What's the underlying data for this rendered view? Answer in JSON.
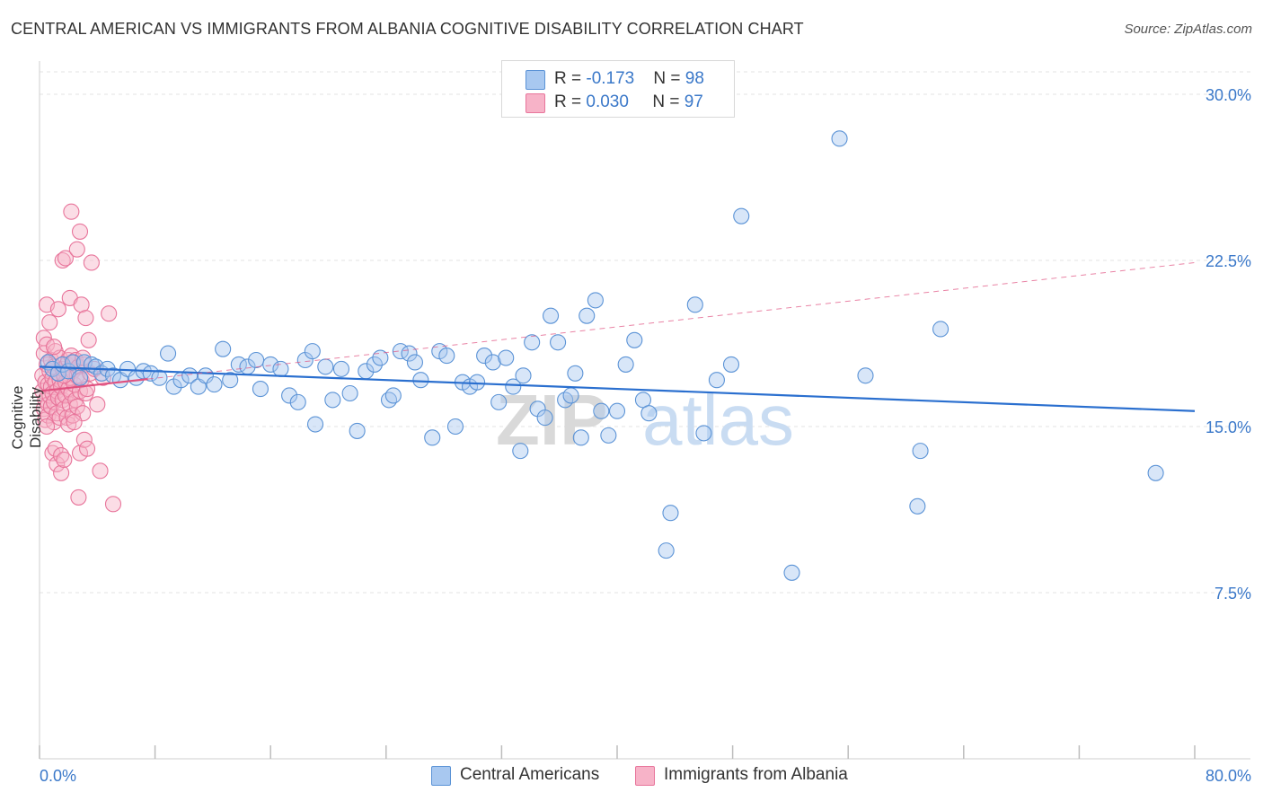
{
  "header": {
    "title": "CENTRAL AMERICAN VS IMMIGRANTS FROM ALBANIA COGNITIVE DISABILITY CORRELATION CHART",
    "source": "Source: ZipAtlas.com"
  },
  "watermark": {
    "part1": "ZIP",
    "part2": "atlas"
  },
  "legend_top": [
    {
      "r_label": "R = ",
      "r_value": "-0.173",
      "n_label": "N = ",
      "n_value": "98"
    },
    {
      "r_label": "R = ",
      "r_value": "0.030",
      "n_label": "N = ",
      "n_value": "97"
    }
  ],
  "legend_bottom": [
    {
      "label": "Central Americans"
    },
    {
      "label": "Immigrants from Albania"
    }
  ],
  "colors": {
    "blue_fill": "#a8c8f0",
    "blue_stroke": "#5b93d6",
    "blue_line": "#2a6fcf",
    "pink_fill": "#f7b3c8",
    "pink_stroke": "#e8759b",
    "pink_line": "#e0507f",
    "tick_label": "#3a78c9",
    "grid": "#e3e3e3"
  },
  "chart_data": {
    "type": "scatter",
    "title": "CENTRAL AMERICAN VS IMMIGRANTS FROM ALBANIA COGNITIVE DISABILITY CORRELATION CHART",
    "xlabel": "",
    "ylabel": "Cognitive Disability",
    "xlim": [
      0,
      80
    ],
    "ylim": [
      0,
      31.5
    ],
    "x_tick_labels": [
      "0.0%",
      "80.0%"
    ],
    "y_ticks": [
      7.5,
      15.0,
      22.5,
      30.0
    ],
    "y_tick_labels": [
      "7.5%",
      "15.0%",
      "22.5%",
      "30.0%"
    ],
    "grid": true,
    "legend_placement": "top-center and bottom",
    "series": [
      {
        "name": "Central Americans",
        "r": -0.173,
        "n": 98,
        "trend": {
          "x": [
            0,
            80
          ],
          "y": [
            17.7,
            15.7
          ]
        },
        "points": [
          [
            0.6,
            17.9
          ],
          [
            0.9,
            17.6
          ],
          [
            1.3,
            17.4
          ],
          [
            1.6,
            17.8
          ],
          [
            2.0,
            17.5
          ],
          [
            2.3,
            17.9
          ],
          [
            2.8,
            17.2
          ],
          [
            3.1,
            17.9
          ],
          [
            3.6,
            17.8
          ],
          [
            3.9,
            17.7
          ],
          [
            4.3,
            17.4
          ],
          [
            4.7,
            17.6
          ],
          [
            5.1,
            17.3
          ],
          [
            5.6,
            17.1
          ],
          [
            6.1,
            17.6
          ],
          [
            6.7,
            17.2
          ],
          [
            7.2,
            17.5
          ],
          [
            7.7,
            17.4
          ],
          [
            8.3,
            17.2
          ],
          [
            8.9,
            18.3
          ],
          [
            9.3,
            16.8
          ],
          [
            9.8,
            17.1
          ],
          [
            10.4,
            17.3
          ],
          [
            11.0,
            16.8
          ],
          [
            11.5,
            17.3
          ],
          [
            12.1,
            16.9
          ],
          [
            12.7,
            18.5
          ],
          [
            13.2,
            17.1
          ],
          [
            13.8,
            17.8
          ],
          [
            14.4,
            17.7
          ],
          [
            15.0,
            18.0
          ],
          [
            15.3,
            16.7
          ],
          [
            16.0,
            17.8
          ],
          [
            16.7,
            17.6
          ],
          [
            17.3,
            16.4
          ],
          [
            17.9,
            16.1
          ],
          [
            18.4,
            18.0
          ],
          [
            18.9,
            18.4
          ],
          [
            19.1,
            15.1
          ],
          [
            19.8,
            17.7
          ],
          [
            20.3,
            16.2
          ],
          [
            20.9,
            17.6
          ],
          [
            21.5,
            16.5
          ],
          [
            22.0,
            14.8
          ],
          [
            22.6,
            17.5
          ],
          [
            23.2,
            17.8
          ],
          [
            23.6,
            18.1
          ],
          [
            24.2,
            16.2
          ],
          [
            24.5,
            16.4
          ],
          [
            25.0,
            18.4
          ],
          [
            25.6,
            18.3
          ],
          [
            26.0,
            17.9
          ],
          [
            26.4,
            17.1
          ],
          [
            27.2,
            14.5
          ],
          [
            27.7,
            18.4
          ],
          [
            28.2,
            18.2
          ],
          [
            28.8,
            15.0
          ],
          [
            29.3,
            17.0
          ],
          [
            29.8,
            16.8
          ],
          [
            30.3,
            17.0
          ],
          [
            30.8,
            18.2
          ],
          [
            31.4,
            17.9
          ],
          [
            31.8,
            16.1
          ],
          [
            32.3,
            18.1
          ],
          [
            32.8,
            16.8
          ],
          [
            33.3,
            13.9
          ],
          [
            33.5,
            17.3
          ],
          [
            34.1,
            18.8
          ],
          [
            34.5,
            15.8
          ],
          [
            35.0,
            15.4
          ],
          [
            35.4,
            20.0
          ],
          [
            35.9,
            18.8
          ],
          [
            36.4,
            16.2
          ],
          [
            36.8,
            16.4
          ],
          [
            37.1,
            17.4
          ],
          [
            37.5,
            14.5
          ],
          [
            37.9,
            20.0
          ],
          [
            38.5,
            20.7
          ],
          [
            38.9,
            15.7
          ],
          [
            39.4,
            14.6
          ],
          [
            40.0,
            15.7
          ],
          [
            40.6,
            17.8
          ],
          [
            41.2,
            18.9
          ],
          [
            41.8,
            16.2
          ],
          [
            42.2,
            15.6
          ],
          [
            43.7,
            11.1
          ],
          [
            43.4,
            9.4
          ],
          [
            45.4,
            20.5
          ],
          [
            46.0,
            14.7
          ],
          [
            46.9,
            17.1
          ],
          [
            47.9,
            17.8
          ],
          [
            48.6,
            24.5
          ],
          [
            52.1,
            8.4
          ],
          [
            55.4,
            28.0
          ],
          [
            57.2,
            17.3
          ],
          [
            60.8,
            11.4
          ],
          [
            61.0,
            13.9
          ],
          [
            62.4,
            19.4
          ],
          [
            77.3,
            12.9
          ]
        ]
      },
      {
        "name": "Immigrants from Albania",
        "r": 0.03,
        "n": 97,
        "trend": {
          "x": [
            0,
            80
          ],
          "y": [
            16.6,
            22.4
          ]
        },
        "points": [
          [
            0.2,
            17.3
          ],
          [
            0.2,
            16.6
          ],
          [
            0.3,
            15.8
          ],
          [
            0.3,
            18.3
          ],
          [
            0.3,
            19.0
          ],
          [
            0.4,
            17.0
          ],
          [
            0.4,
            16.2
          ],
          [
            0.4,
            15.3
          ],
          [
            0.5,
            18.7
          ],
          [
            0.5,
            20.5
          ],
          [
            0.5,
            17.8
          ],
          [
            0.6,
            16.9
          ],
          [
            0.6,
            16.0
          ],
          [
            0.6,
            15.5
          ],
          [
            0.7,
            19.7
          ],
          [
            0.7,
            17.5
          ],
          [
            0.7,
            16.4
          ],
          [
            0.8,
            18.0
          ],
          [
            0.8,
            16.8
          ],
          [
            0.8,
            15.9
          ],
          [
            0.9,
            17.2
          ],
          [
            0.9,
            16.5
          ],
          [
            0.9,
            13.8
          ],
          [
            1.0,
            17.7
          ],
          [
            1.0,
            16.1
          ],
          [
            1.0,
            15.2
          ],
          [
            1.1,
            18.4
          ],
          [
            1.1,
            17.0
          ],
          [
            1.1,
            14.0
          ],
          [
            1.2,
            16.6
          ],
          [
            1.2,
            15.6
          ],
          [
            1.2,
            13.3
          ],
          [
            1.3,
            20.3
          ],
          [
            1.3,
            17.4
          ],
          [
            1.3,
            16.3
          ],
          [
            1.4,
            18.1
          ],
          [
            1.4,
            17.1
          ],
          [
            1.4,
            15.4
          ],
          [
            1.5,
            16.8
          ],
          [
            1.5,
            13.7
          ],
          [
            1.5,
            12.9
          ],
          [
            1.6,
            22.5
          ],
          [
            1.6,
            17.6
          ],
          [
            1.6,
            16.2
          ],
          [
            1.7,
            15.8
          ],
          [
            1.7,
            13.5
          ],
          [
            1.8,
            22.6
          ],
          [
            1.8,
            17.0
          ],
          [
            1.8,
            16.4
          ],
          [
            1.9,
            17.8
          ],
          [
            1.9,
            15.4
          ],
          [
            2.0,
            18.0
          ],
          [
            2.0,
            16.7
          ],
          [
            2.0,
            15.1
          ],
          [
            2.1,
            20.8
          ],
          [
            2.1,
            17.2
          ],
          [
            2.1,
            16.0
          ],
          [
            2.2,
            24.7
          ],
          [
            2.2,
            18.2
          ],
          [
            2.2,
            16.5
          ],
          [
            2.3,
            17.5
          ],
          [
            2.3,
            15.5
          ],
          [
            2.4,
            17.9
          ],
          [
            2.4,
            16.9
          ],
          [
            2.5,
            18.0
          ],
          [
            2.5,
            16.2
          ],
          [
            2.6,
            23.0
          ],
          [
            2.6,
            17.3
          ],
          [
            2.6,
            15.9
          ],
          [
            2.7,
            11.8
          ],
          [
            2.7,
            17.7
          ],
          [
            2.8,
            23.8
          ],
          [
            2.8,
            16.6
          ],
          [
            2.8,
            13.8
          ],
          [
            2.9,
            20.5
          ],
          [
            2.9,
            17.1
          ],
          [
            3.0,
            15.6
          ],
          [
            3.1,
            17.8
          ],
          [
            3.1,
            14.4
          ],
          [
            3.2,
            19.9
          ],
          [
            3.2,
            16.5
          ],
          [
            3.3,
            16.7
          ],
          [
            3.3,
            14.0
          ],
          [
            3.4,
            18.9
          ],
          [
            3.5,
            17.4
          ],
          [
            3.6,
            22.4
          ],
          [
            3.8,
            17.6
          ],
          [
            4.0,
            16.0
          ],
          [
            4.2,
            13.0
          ],
          [
            4.4,
            17.2
          ],
          [
            4.8,
            20.1
          ],
          [
            5.1,
            11.5
          ],
          [
            0.5,
            15.0
          ],
          [
            1.0,
            18.6
          ],
          [
            1.7,
            17.3
          ],
          [
            2.4,
            15.2
          ],
          [
            3.0,
            18.1
          ]
        ]
      }
    ]
  }
}
